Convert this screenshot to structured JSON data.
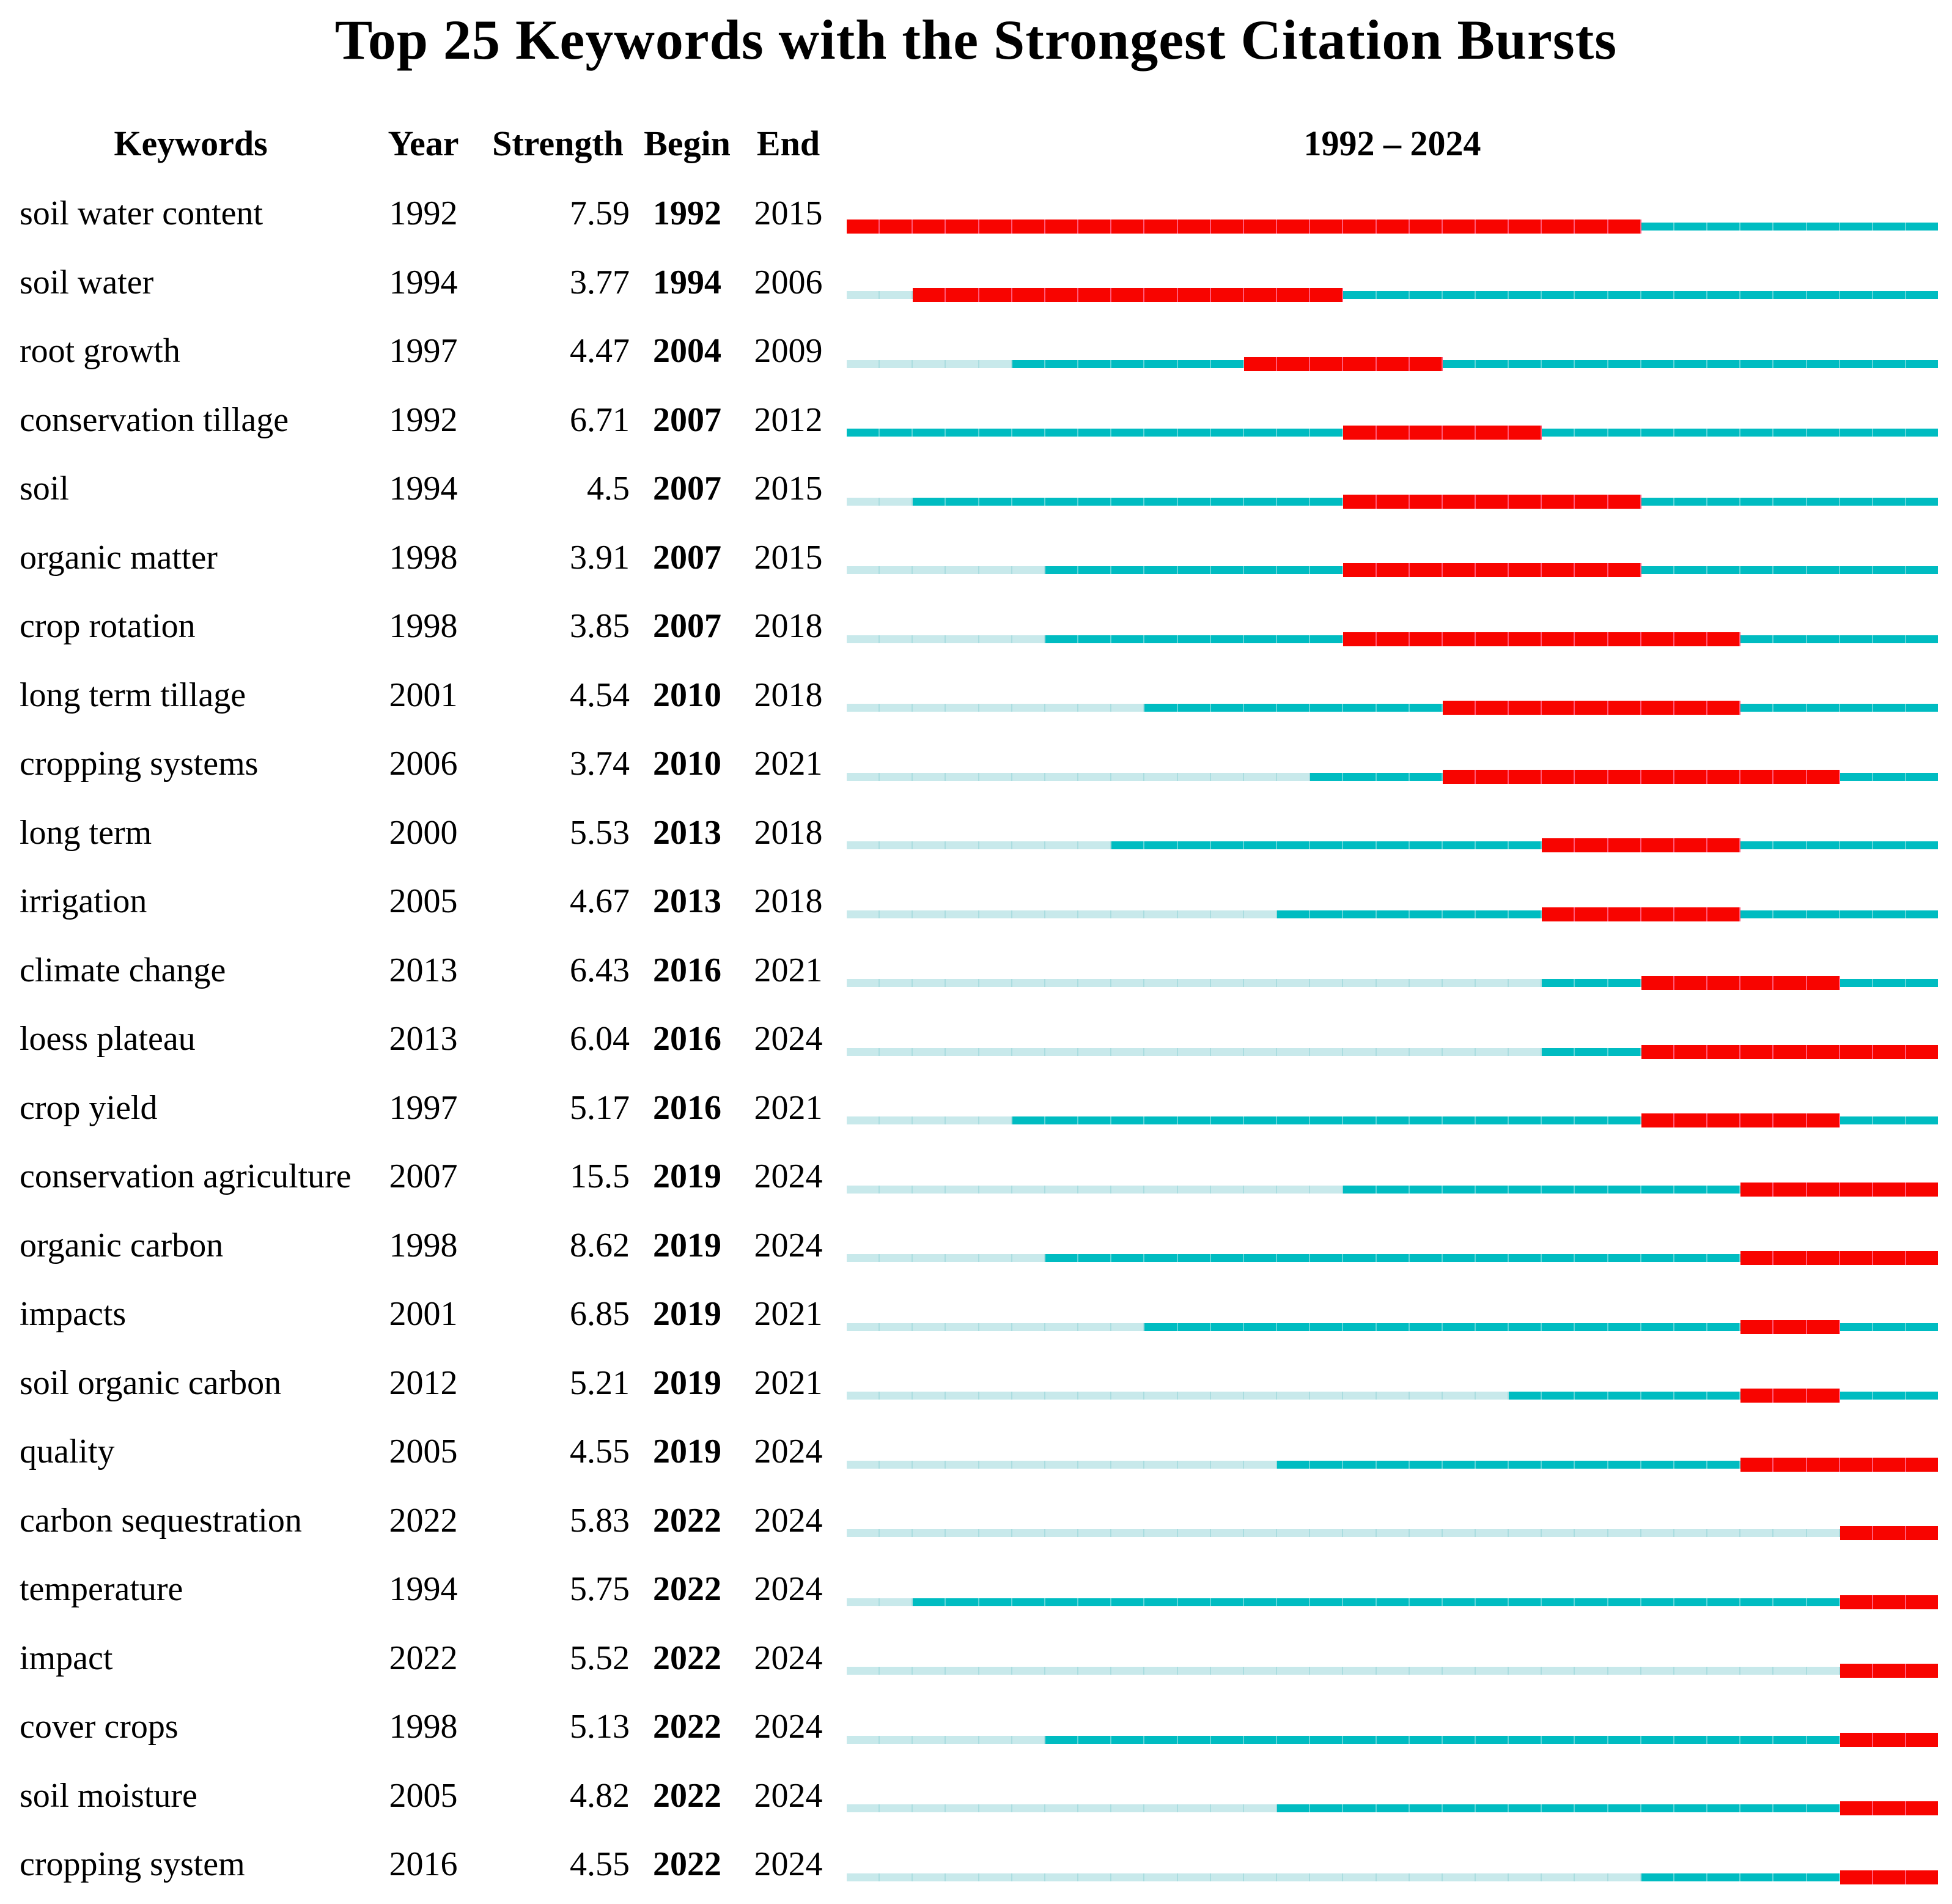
{
  "colors": {
    "burst": "#f80400",
    "active": "#00bcc1",
    "inactive": "#c8e9eb",
    "text": "#000000"
  },
  "timeline": {
    "start_year": 1992,
    "end_year": 2024
  },
  "chart_data": {
    "type": "table",
    "title": "Top 25 Keywords with the Strongest Citation Bursts",
    "columns": [
      "Keywords",
      "Year",
      "Strength",
      "Begin",
      "End"
    ],
    "timeline_label": "1992 – 2024",
    "timeline_range": [
      1992,
      2024
    ],
    "rows": [
      {
        "keyword": "soil water content",
        "year": 1992,
        "strength": "7.59",
        "begin": 1992,
        "end": 2015
      },
      {
        "keyword": "soil water",
        "year": 1994,
        "strength": "3.77",
        "begin": 1994,
        "end": 2006
      },
      {
        "keyword": "root growth",
        "year": 1997,
        "strength": "4.47",
        "begin": 2004,
        "end": 2009
      },
      {
        "keyword": "conservation tillage",
        "year": 1992,
        "strength": "6.71",
        "begin": 2007,
        "end": 2012
      },
      {
        "keyword": "soil",
        "year": 1994,
        "strength": "4.5",
        "begin": 2007,
        "end": 2015
      },
      {
        "keyword": "organic matter",
        "year": 1998,
        "strength": "3.91",
        "begin": 2007,
        "end": 2015
      },
      {
        "keyword": "crop rotation",
        "year": 1998,
        "strength": "3.85",
        "begin": 2007,
        "end": 2018
      },
      {
        "keyword": "long term tillage",
        "year": 2001,
        "strength": "4.54",
        "begin": 2010,
        "end": 2018
      },
      {
        "keyword": "cropping systems",
        "year": 2006,
        "strength": "3.74",
        "begin": 2010,
        "end": 2021
      },
      {
        "keyword": "long term",
        "year": 2000,
        "strength": "5.53",
        "begin": 2013,
        "end": 2018
      },
      {
        "keyword": "irrigation",
        "year": 2005,
        "strength": "4.67",
        "begin": 2013,
        "end": 2018
      },
      {
        "keyword": "climate change",
        "year": 2013,
        "strength": "6.43",
        "begin": 2016,
        "end": 2021
      },
      {
        "keyword": "loess plateau",
        "year": 2013,
        "strength": "6.04",
        "begin": 2016,
        "end": 2024
      },
      {
        "keyword": "crop yield",
        "year": 1997,
        "strength": "5.17",
        "begin": 2016,
        "end": 2021
      },
      {
        "keyword": "conservation agriculture",
        "year": 2007,
        "strength": "15.5",
        "begin": 2019,
        "end": 2024
      },
      {
        "keyword": "organic carbon",
        "year": 1998,
        "strength": "8.62",
        "begin": 2019,
        "end": 2024
      },
      {
        "keyword": "impacts",
        "year": 2001,
        "strength": "6.85",
        "begin": 2019,
        "end": 2021
      },
      {
        "keyword": "soil organic carbon",
        "year": 2012,
        "strength": "5.21",
        "begin": 2019,
        "end": 2021
      },
      {
        "keyword": "quality",
        "year": 2005,
        "strength": "4.55",
        "begin": 2019,
        "end": 2024
      },
      {
        "keyword": "carbon sequestration",
        "year": 2022,
        "strength": "5.83",
        "begin": 2022,
        "end": 2024
      },
      {
        "keyword": "temperature",
        "year": 1994,
        "strength": "5.75",
        "begin": 2022,
        "end": 2024
      },
      {
        "keyword": "impact",
        "year": 2022,
        "strength": "5.52",
        "begin": 2022,
        "end": 2024
      },
      {
        "keyword": "cover crops",
        "year": 1998,
        "strength": "5.13",
        "begin": 2022,
        "end": 2024
      },
      {
        "keyword": "soil moisture",
        "year": 2005,
        "strength": "4.82",
        "begin": 2022,
        "end": 2024
      },
      {
        "keyword": "cropping system",
        "year": 2016,
        "strength": "4.55",
        "begin": 2022,
        "end": 2024
      }
    ]
  }
}
